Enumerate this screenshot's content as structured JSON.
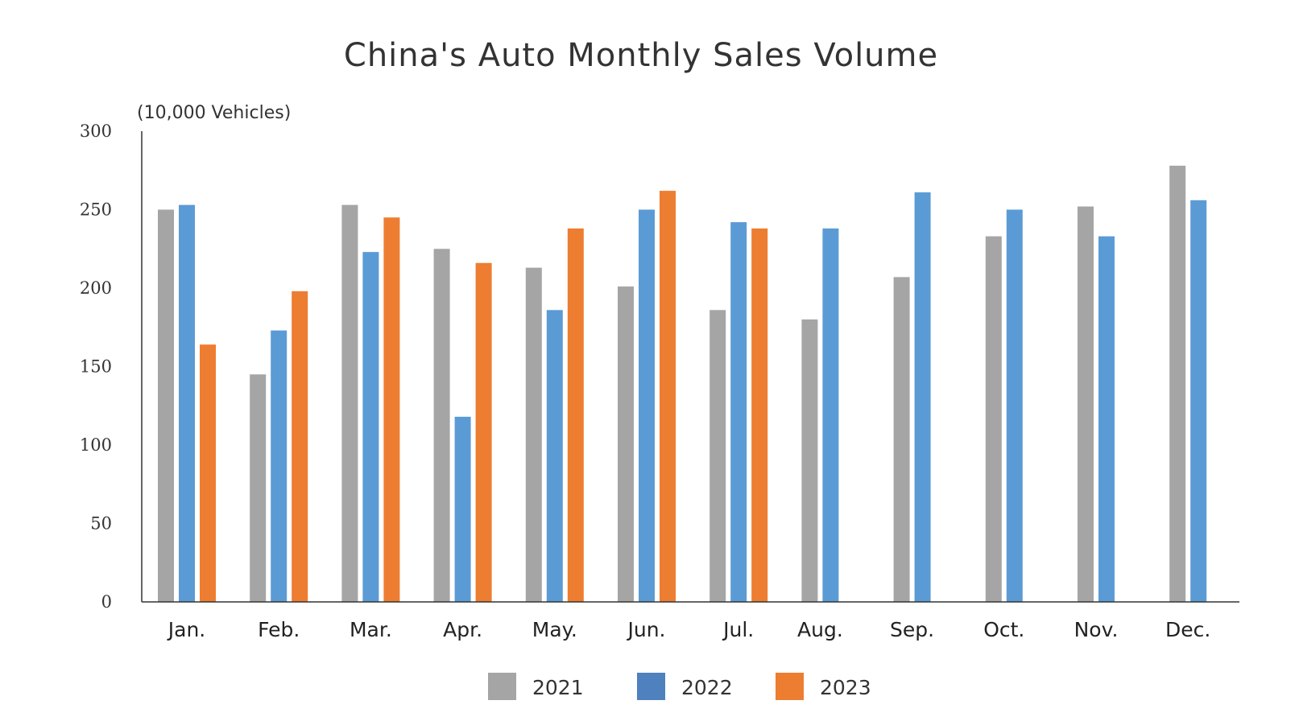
{
  "chart_data": {
    "type": "bar",
    "title": "China's Auto Monthly Sales Volume",
    "ylabel": "(10,000 Vehicles)",
    "xlabel": "",
    "ylim": [
      0,
      300
    ],
    "yticks": [
      "0",
      "50",
      "100",
      "150",
      "200",
      "250",
      "300"
    ],
    "ytick_values": [
      0,
      50,
      100,
      150,
      200,
      250,
      300
    ],
    "grid": false,
    "legend_position": "bottom",
    "categories": [
      "Jan.",
      "Feb.",
      "Mar.",
      "Apr.",
      "May.",
      "Jun.",
      "Jul.",
      "Aug.",
      "Sep.",
      "Oct.",
      "Nov.",
      "Dec."
    ],
    "series": [
      {
        "name": "2021",
        "color": "#a5a5a5",
        "values": [
          250,
          145,
          253,
          225,
          213,
          201,
          186,
          180,
          207,
          233,
          252,
          278
        ]
      },
      {
        "name": "2022",
        "color": "#5b9bd5",
        "legend_color": "#4e81bd",
        "values": [
          253,
          173,
          223,
          118,
          186,
          250,
          242,
          238,
          261,
          250,
          233,
          256
        ]
      },
      {
        "name": "2023",
        "color": "#ed7d31",
        "values": [
          164,
          198,
          245,
          216,
          238,
          262,
          238,
          null,
          null,
          null,
          null,
          null
        ]
      }
    ]
  }
}
